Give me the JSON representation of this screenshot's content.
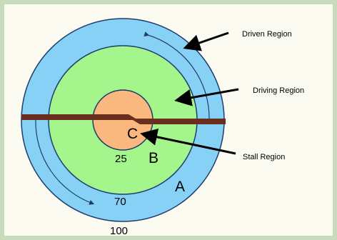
{
  "labels": {
    "driven_region": "Driven Region",
    "driving_region": "Driving Region",
    "stall_region": "Stall Region"
  },
  "letters": {
    "a": "A",
    "b": "B",
    "c": "C"
  },
  "radii_labels": {
    "r25": "25",
    "r70": "70",
    "r100": "100"
  },
  "colors": {
    "frame_border": "#c8dcbd",
    "background": "#fbfbf2",
    "driven_region": "#87d1f7",
    "driving_region": "#a4f58b",
    "stall_region": "#fbb87e",
    "shaft": "#6a2e1e",
    "outline": "#1e3d6e"
  }
}
